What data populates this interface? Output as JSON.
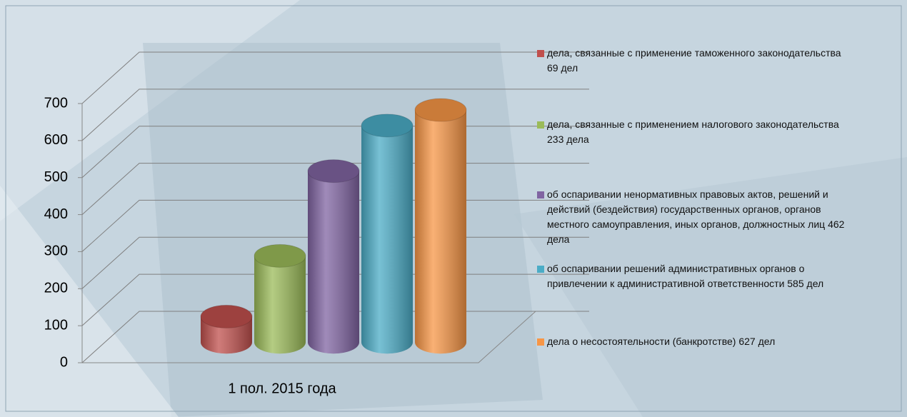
{
  "chart_data": {
    "type": "bar3d",
    "categories": [
      "1 пол. 2015 года"
    ],
    "series": [
      {
        "name": "дела, связанные с применение таможенного законодательства 69 дел",
        "color": "#c0504d",
        "values": [
          69
        ]
      },
      {
        "name": "дела, связанные с применением налогового законодательства 233 дела",
        "color": "#9bbb59",
        "values": [
          233
        ]
      },
      {
        "name": "об оспаривании ненормативных правовых актов, решений и действий (бездействия) государственных органов, органов местного самоуправления, иных органов, должностных лиц 462 дела",
        "color": "#8064a2",
        "values": [
          462
        ]
      },
      {
        "name": "об оспаривании решений административных органов о привлечении к административной ответственности 585 дел",
        "color": "#4bacc6",
        "values": [
          585
        ]
      },
      {
        "name": "дела о несостоятельности (банкротстве) 627 дел",
        "color": "#f79646",
        "values": [
          627
        ]
      }
    ],
    "ylim": [
      0,
      700
    ],
    "yticks": [
      0,
      100,
      200,
      300,
      400,
      500,
      600,
      700
    ],
    "grid": true,
    "legend": "right"
  }
}
